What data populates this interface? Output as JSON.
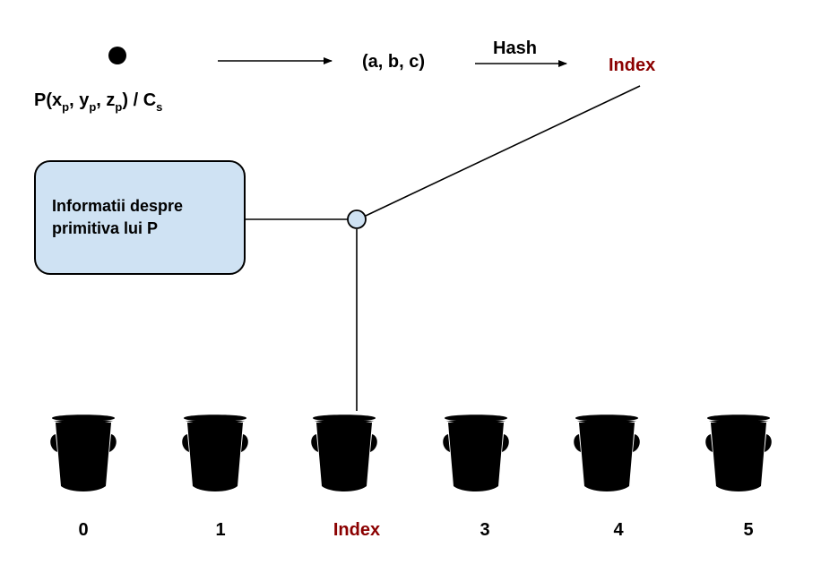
{
  "point_label": {
    "prefix": "P(x",
    "sub1": "p",
    "mid1": ", y",
    "sub2": "p",
    "mid2": ", z",
    "sub3": "p",
    "mid3": ") / C",
    "sub4": "s"
  },
  "tuple_label": "(a, b, c)",
  "hash_label": "Hash",
  "index_top_label": "Index",
  "info_box_text": "Informatii despre primitiva lui P",
  "buckets": [
    {
      "label": "0",
      "highlight": false
    },
    {
      "label": "1",
      "highlight": false
    },
    {
      "label": "Index",
      "highlight": true
    },
    {
      "label": "3",
      "highlight": false
    },
    {
      "label": "4",
      "highlight": false
    },
    {
      "label": "5",
      "highlight": false
    }
  ],
  "colors": {
    "highlight": "#8b0000",
    "box_fill": "#cfe2f3",
    "junction_fill": "#cfe2f3"
  }
}
